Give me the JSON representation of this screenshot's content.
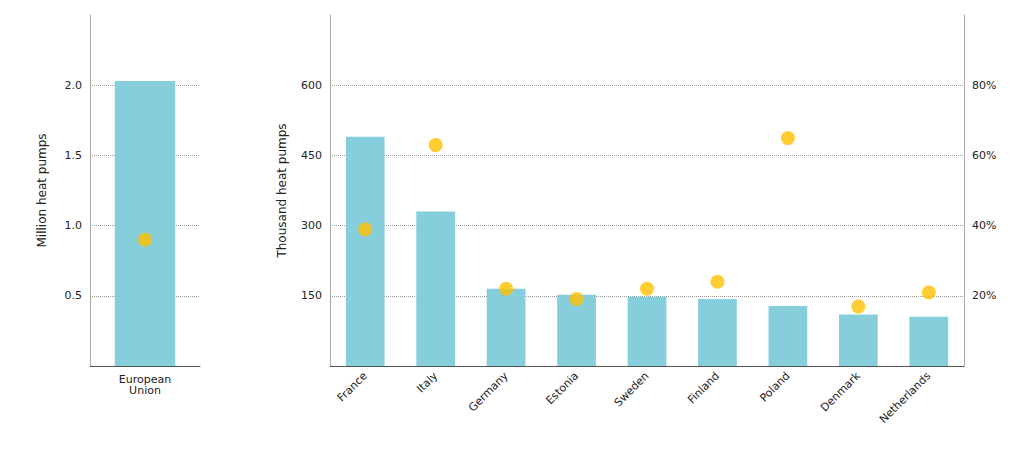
{
  "chart_data": [
    {
      "type": "bar",
      "categories": [
        "European\nUnion"
      ],
      "series": [
        {
          "type": "bar",
          "color": "#87CEDC",
          "values": [
            2.03
          ]
        },
        {
          "type": "scatter",
          "marker": "circle",
          "color": "#FFC000",
          "values": [
            0.9
          ]
        }
      ],
      "ylabel": "Million heat pumps",
      "ylim": [
        0,
        2.5
      ],
      "yticks": [
        0.5,
        {
          "value": 1,
          "label": "1.0"
        },
        1.5,
        {
          "value": 2,
          "label": "2.0"
        }
      ],
      "grid": true
    },
    {
      "type": "bar",
      "categories": [
        "France",
        "Italy",
        "Germany",
        "Estonia",
        "Sweden",
        "Finland",
        "Poland",
        "Denmark",
        "Netherlands"
      ],
      "series": [
        {
          "type": "bar",
          "color": "#87CEDC",
          "values": [
            490,
            330,
            165,
            152,
            148,
            143,
            128,
            110,
            105
          ]
        },
        {
          "type": "scatter",
          "marker": "circle",
          "color": "#FFC000",
          "values": [
            292,
            472,
            165,
            143,
            165,
            180,
            487,
            127,
            157
          ]
        }
      ],
      "ylabel": "Thousand heat pumps",
      "ylim": [
        0,
        750
      ],
      "yticks": [
        150,
        300,
        450,
        600
      ],
      "y2lim": [
        0,
        100
      ],
      "y2ticks": [
        {
          "value": 20,
          "label": "20%"
        },
        {
          "value": 40,
          "label": "40%"
        },
        {
          "value": 60,
          "label": "60%"
        },
        {
          "value": 80,
          "label": "80%"
        }
      ],
      "grid": true
    }
  ]
}
